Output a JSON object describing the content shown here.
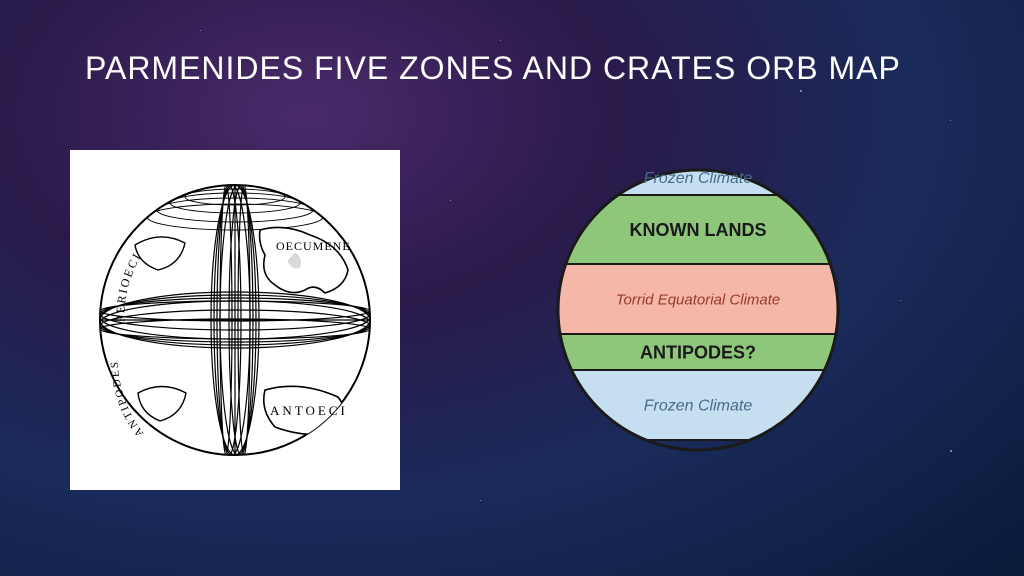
{
  "title": "PARMENIDES FIVE ZONES AND CRATES ORB MAP",
  "background": {
    "gradient_stops": [
      "#4a2a6a",
      "#2a1a4a",
      "#1a2a5a",
      "#0a1a3a"
    ]
  },
  "left_orb": {
    "type": "diagram",
    "description": "Crates orb map - engraved globe",
    "background": "#ffffff",
    "line_color": "#000000",
    "labels": {
      "perioeci": "PERIOECI",
      "oecumene": "OECUMENE",
      "antipodes": "ANTIPODES",
      "antoeci": "ANTOECI"
    }
  },
  "right_zones": {
    "type": "diagram",
    "description": "Parmenides five climate zones",
    "outline_color": "#1a1a1a",
    "outline_width": 2,
    "zones": [
      {
        "id": "frozen_north",
        "label": "Frozen Climate",
        "color": "#c5dff0",
        "text_color": "#4a6a8a",
        "style": "italic",
        "fontsize": 16
      },
      {
        "id": "known_lands",
        "label": "KNOWN LANDS",
        "color": "#8fc77a",
        "text_color": "#1a1a1a",
        "style": "bold",
        "fontsize": 18
      },
      {
        "id": "torrid",
        "label": "Torrid Equatorial Climate",
        "color": "#f5b8a8",
        "text_color": "#9a3a2a",
        "style": "italic",
        "fontsize": 15
      },
      {
        "id": "antipodes",
        "label": "ANTIPODES?",
        "color": "#8fc77a",
        "text_color": "#1a1a1a",
        "style": "bold",
        "fontsize": 18
      },
      {
        "id": "frozen_south",
        "label": "Frozen Climate",
        "color": "#c5dff0",
        "text_color": "#4a6a8a",
        "style": "italic",
        "fontsize": 16
      }
    ],
    "band_boundaries_y": [
      35,
      104,
      174,
      210,
      280
    ]
  }
}
